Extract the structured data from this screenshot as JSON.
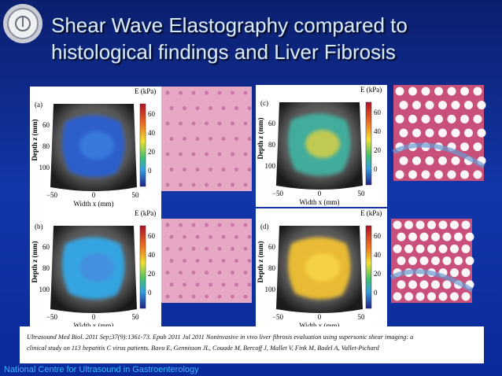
{
  "title": {
    "line1": "Shear Wave Elastography compared to",
    "line2": "histological  findings and Liver Fibrosis"
  },
  "panels": [
    {
      "label": "(a)",
      "colorbar_title": "E (kPa)",
      "colorbar_ticks": [
        "60",
        "40",
        "20",
        "0"
      ],
      "y_label": "Depth z (mm)",
      "y_ticks": [
        "60",
        "80",
        "100"
      ],
      "x_ticks": [
        "−50",
        "0",
        "50"
      ],
      "x_label": "Width x (mm)"
    },
    {
      "label": "(c)",
      "colorbar_title": "E (kPa)",
      "colorbar_ticks": [
        "60",
        "40",
        "20",
        "0"
      ],
      "y_label": "Depth z (mm)",
      "y_ticks": [
        "60",
        "80",
        "100"
      ],
      "x_ticks": [
        "−50",
        "0",
        "50"
      ],
      "x_label": "Width x (mm)"
    },
    {
      "label": "(b)",
      "colorbar_title": "E (kPa)",
      "colorbar_ticks": [
        "60",
        "40",
        "20",
        "0"
      ],
      "y_label": "Depth z (mm)",
      "y_ticks": [
        "60",
        "80",
        "100"
      ],
      "x_ticks": [
        "−50",
        "0",
        "50"
      ],
      "x_label": "Width x (mm)"
    },
    {
      "label": "(d)",
      "colorbar_title": "E (kPa)",
      "colorbar_ticks": [
        "60",
        "40",
        "20",
        "0"
      ],
      "y_label": "Depth z (mm)",
      "y_ticks": [
        "60",
        "80",
        "100"
      ],
      "x_ticks": [
        "−50",
        "0",
        "50"
      ],
      "x_label": "Width x (mm)"
    }
  ],
  "caption": [
    "Ultrasound Med Biol. 2011 Sep;37(9):1361-73.  Epub 2011  Jul 2011  Noninvasive in vivo liver fibrosis evaluation using supersonic shear imaging: a",
    "clinical study on 113 hepatitis C virus patients. Bavu E, Gennisson JL, Couade M, Bercoff J, Mallet V, Fink M, Badel A, Vallet-Pichard"
  ],
  "footer": "National Centre for Ultrasound in Gastroenterology"
}
